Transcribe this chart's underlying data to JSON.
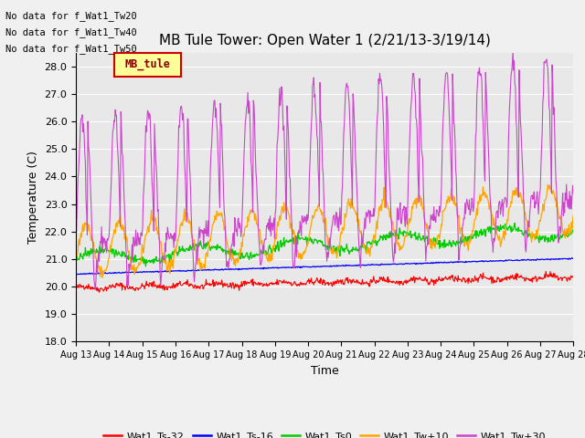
{
  "title": "MB Tule Tower: Open Water 1 (2/21/13-3/19/14)",
  "xlabel": "Time",
  "ylabel": "Temperature (C)",
  "ylim": [
    18.0,
    28.5
  ],
  "yticks": [
    18.0,
    19.0,
    20.0,
    21.0,
    22.0,
    23.0,
    24.0,
    25.0,
    26.0,
    27.0,
    28.0
  ],
  "xlim": [
    0,
    15
  ],
  "xtick_labels": [
    "Aug 13",
    "Aug 14",
    "Aug 15",
    "Aug 16",
    "Aug 17",
    "Aug 18",
    "Aug 19",
    "Aug 20",
    "Aug 21",
    "Aug 22",
    "Aug 23",
    "Aug 24",
    "Aug 25",
    "Aug 26",
    "Aug 27",
    "Aug 28"
  ],
  "no_data_text": [
    "No data for f_Wat1_Tw20",
    "No data for f_Wat1_Tw40",
    "No data for f_Wat1_Tw50"
  ],
  "legend_label_box": "MB_tule",
  "series": {
    "Wat1_Ts-32": {
      "color": "#ff0000",
      "label": "Wat1_Ts-32"
    },
    "Wat1_Ts-16": {
      "color": "#0000ff",
      "label": "Wat1_Ts-16"
    },
    "Wat1_Ts0": {
      "color": "#00cc00",
      "label": "Wat1_Ts0"
    },
    "Wat1_Tw+10": {
      "color": "#ffa500",
      "label": "Wat1_Tw+10"
    },
    "Wat1_Tw+30": {
      "color": "#cc44cc",
      "label": "Wat1_Tw+30"
    }
  },
  "plot_bg": "#e8e8e8",
  "fig_bg": "#f0f0f0",
  "title_fontsize": 11,
  "axis_fontsize": 9,
  "tick_fontsize": 8,
  "legend_fontsize": 8
}
